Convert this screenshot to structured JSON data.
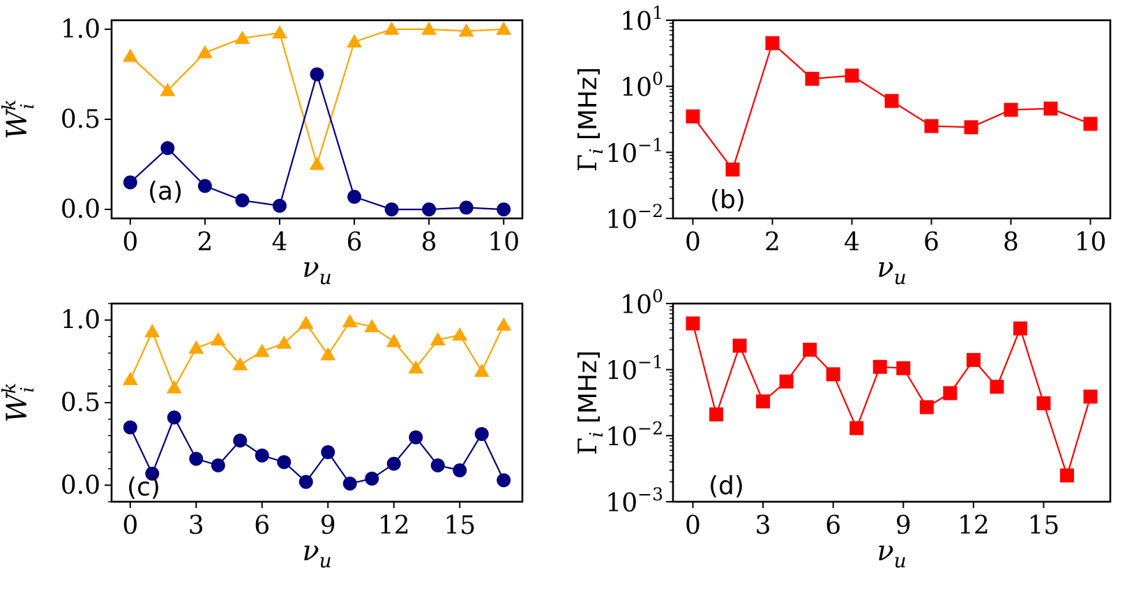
{
  "colors": {
    "orange": "#FFA500",
    "navy": "#000080",
    "red": "#FF0000"
  },
  "chart_data": [
    {
      "panel": "(a)",
      "type": "line",
      "xlabel": "ν_u",
      "ylabel": "W_i^k",
      "xlim": [
        -0.5,
        10.5
      ],
      "ylim": [
        -0.05,
        1.05
      ],
      "xticks": [
        0,
        2,
        4,
        6,
        8,
        10
      ],
      "xtick_labels": [
        "0",
        "2",
        "4",
        "6",
        "8",
        "10"
      ],
      "yticks": [
        0.0,
        0.5,
        1.0
      ],
      "ytick_labels": [
        "0.0",
        "0.5",
        "1.0"
      ],
      "y_minor": false,
      "yscale": "linear",
      "x": [
        0,
        1,
        2,
        3,
        4,
        5,
        6,
        7,
        8,
        9,
        10
      ],
      "series": [
        {
          "marker": "triangle",
          "color": "#FFA500",
          "values": [
            0.85,
            0.66,
            0.87,
            0.95,
            0.98,
            0.25,
            0.93,
            1.0,
            1.0,
            0.99,
            1.0
          ]
        },
        {
          "marker": "circle",
          "color": "#000080",
          "values": [
            0.15,
            0.34,
            0.13,
            0.05,
            0.02,
            0.75,
            0.07,
            0.0,
            0.0,
            0.01,
            0.0
          ]
        }
      ]
    },
    {
      "panel": "(b)",
      "type": "line",
      "xlabel": "ν_u",
      "ylabel": "Γ_i [MHz]",
      "xlim": [
        -0.5,
        10.5
      ],
      "yscale": "log",
      "ylim_exp": [
        -2,
        1
      ],
      "xticks": [
        0,
        2,
        4,
        6,
        8,
        10
      ],
      "xtick_labels": [
        "0",
        "2",
        "4",
        "6",
        "8",
        "10"
      ],
      "yticks_exp": [
        -2,
        -1,
        0,
        1
      ],
      "x": [
        0,
        1,
        2,
        3,
        4,
        5,
        6,
        7,
        8,
        9,
        10
      ],
      "series": [
        {
          "marker": "square",
          "color": "#FF0000",
          "values": [
            0.35,
            0.055,
            4.5,
            1.3,
            1.45,
            0.6,
            0.25,
            0.24,
            0.44,
            0.46,
            0.27
          ]
        }
      ]
    },
    {
      "panel": "(c)",
      "type": "line",
      "xlabel": "ν_u",
      "ylabel": "W_i^k",
      "xlim": [
        -0.85,
        17.85
      ],
      "ylim": [
        -0.1,
        1.1
      ],
      "xticks": [
        0,
        3,
        6,
        9,
        12,
        15
      ],
      "xtick_labels": [
        "0",
        "3",
        "6",
        "9",
        "12",
        "15"
      ],
      "yticks": [
        0.0,
        0.5,
        1.0
      ],
      "ytick_labels": [
        "0.0",
        "0.5",
        "1.0"
      ],
      "y_minor": true,
      "yscale": "linear",
      "x": [
        0,
        1,
        2,
        3,
        4,
        5,
        6,
        7,
        8,
        9,
        10,
        11,
        12,
        13,
        14,
        15,
        16,
        17
      ],
      "series": [
        {
          "marker": "triangle",
          "color": "#FFA500",
          "values": [
            0.64,
            0.93,
            0.59,
            0.83,
            0.88,
            0.73,
            0.81,
            0.86,
            0.98,
            0.79,
            0.99,
            0.96,
            0.87,
            0.71,
            0.88,
            0.91,
            0.69,
            0.97
          ]
        },
        {
          "marker": "circle",
          "color": "#000080",
          "values": [
            0.35,
            0.07,
            0.41,
            0.16,
            0.12,
            0.27,
            0.18,
            0.14,
            0.02,
            0.2,
            0.01,
            0.04,
            0.13,
            0.29,
            0.12,
            0.09,
            0.31,
            0.03
          ]
        }
      ]
    },
    {
      "panel": "(d)",
      "type": "line",
      "xlabel": "ν_u",
      "ylabel": "Γ_i [MHz]",
      "xlim": [
        -0.85,
        17.85
      ],
      "yscale": "log",
      "ylim_exp": [
        -3,
        0
      ],
      "xticks": [
        0,
        3,
        6,
        9,
        12,
        15
      ],
      "xtick_labels": [
        "0",
        "3",
        "6",
        "9",
        "12",
        "15"
      ],
      "yticks_exp": [
        -3,
        -2,
        -1,
        0
      ],
      "x": [
        0,
        1,
        2,
        3,
        4,
        5,
        6,
        7,
        8,
        9,
        10,
        11,
        12,
        13,
        14,
        15,
        16,
        17
      ],
      "series": [
        {
          "marker": "square",
          "color": "#FF0000",
          "values": [
            0.5,
            0.021,
            0.23,
            0.033,
            0.066,
            0.2,
            0.085,
            0.013,
            0.11,
            0.105,
            0.027,
            0.044,
            0.14,
            0.055,
            0.42,
            0.031,
            0.0025,
            0.039
          ]
        }
      ]
    }
  ]
}
